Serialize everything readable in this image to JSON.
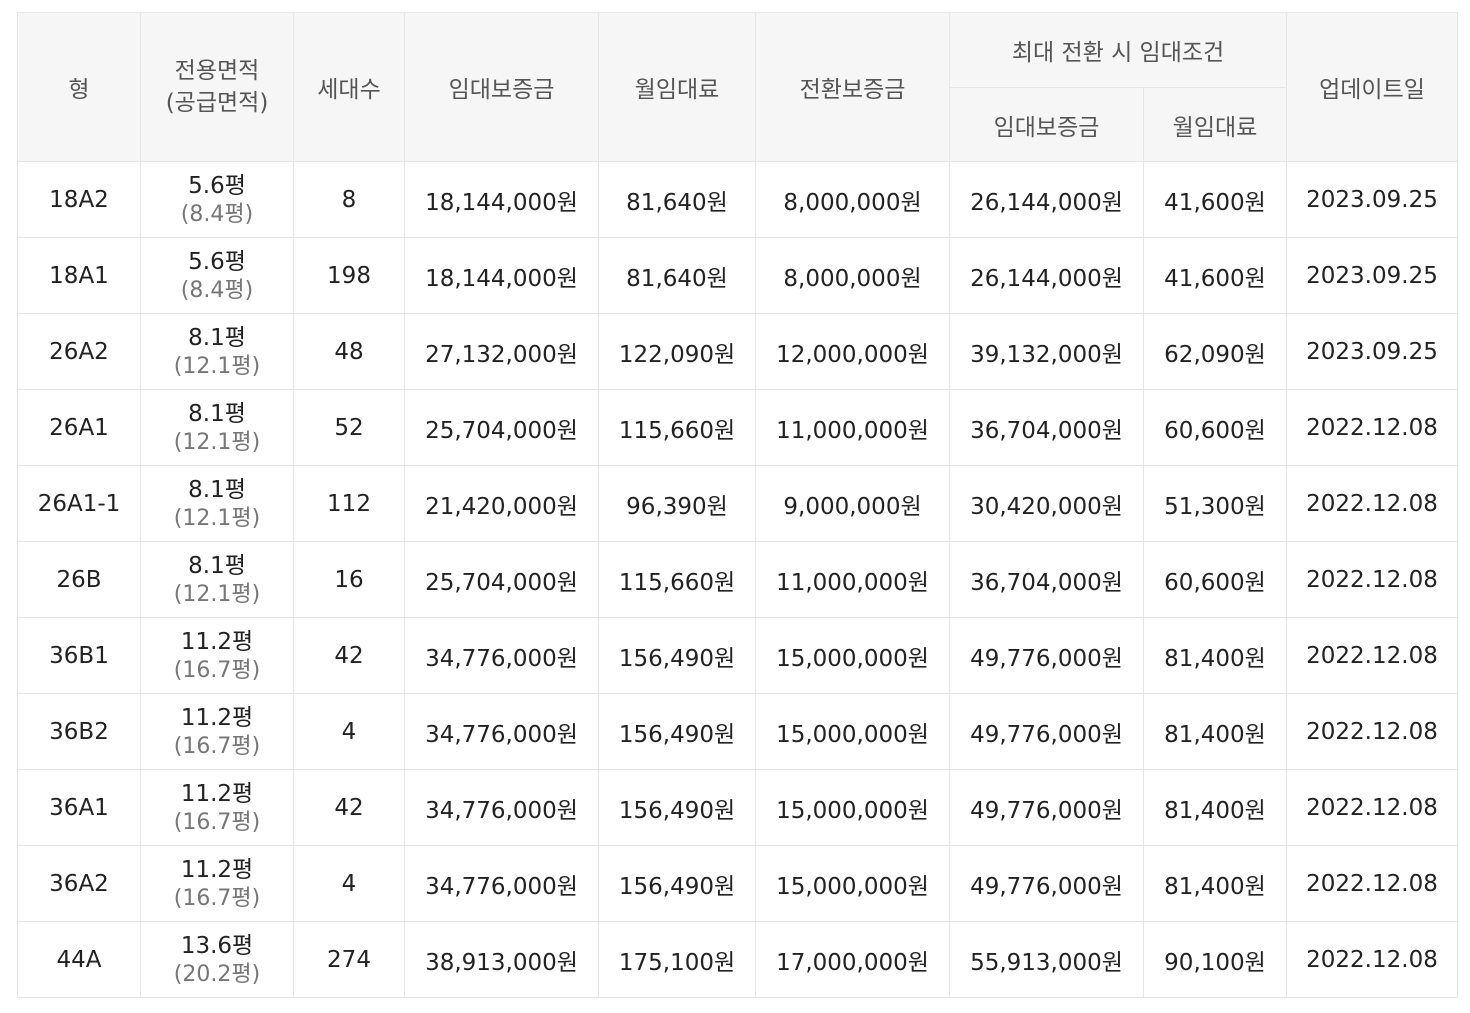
{
  "headers": {
    "type": "형",
    "area_line1": "전용면적",
    "area_line2": "(공급면적)",
    "households": "세대수",
    "deposit": "임대보증금",
    "monthly_rent": "월임대료",
    "conversion_deposit": "전환보증금",
    "max_conversion_group": "최대 전환 시 임대조건",
    "max_deposit": "임대보증금",
    "max_monthly_rent": "월임대료",
    "updated": "업데이트일"
  },
  "rows": [
    {
      "type": "18A2",
      "area": "5.6평",
      "supply_area": "(8.4평)",
      "households": "8",
      "deposit": "18,144,000원",
      "monthly_rent": "81,640원",
      "conversion_deposit": "8,000,000원",
      "max_deposit": "26,144,000원",
      "max_monthly_rent": "41,600원",
      "updated": "2023.09.25"
    },
    {
      "type": "18A1",
      "area": "5.6평",
      "supply_area": "(8.4평)",
      "households": "198",
      "deposit": "18,144,000원",
      "monthly_rent": "81,640원",
      "conversion_deposit": "8,000,000원",
      "max_deposit": "26,144,000원",
      "max_monthly_rent": "41,600원",
      "updated": "2023.09.25"
    },
    {
      "type": "26A2",
      "area": "8.1평",
      "supply_area": "(12.1평)",
      "households": "48",
      "deposit": "27,132,000원",
      "monthly_rent": "122,090원",
      "conversion_deposit": "12,000,000원",
      "max_deposit": "39,132,000원",
      "max_monthly_rent": "62,090원",
      "updated": "2023.09.25"
    },
    {
      "type": "26A1",
      "area": "8.1평",
      "supply_area": "(12.1평)",
      "households": "52",
      "deposit": "25,704,000원",
      "monthly_rent": "115,660원",
      "conversion_deposit": "11,000,000원",
      "max_deposit": "36,704,000원",
      "max_monthly_rent": "60,600원",
      "updated": "2022.12.08"
    },
    {
      "type": "26A1-1",
      "area": "8.1평",
      "supply_area": "(12.1평)",
      "households": "112",
      "deposit": "21,420,000원",
      "monthly_rent": "96,390원",
      "conversion_deposit": "9,000,000원",
      "max_deposit": "30,420,000원",
      "max_monthly_rent": "51,300원",
      "updated": "2022.12.08"
    },
    {
      "type": "26B",
      "area": "8.1평",
      "supply_area": "(12.1평)",
      "households": "16",
      "deposit": "25,704,000원",
      "monthly_rent": "115,660원",
      "conversion_deposit": "11,000,000원",
      "max_deposit": "36,704,000원",
      "max_monthly_rent": "60,600원",
      "updated": "2022.12.08"
    },
    {
      "type": "36B1",
      "area": "11.2평",
      "supply_area": "(16.7평)",
      "households": "42",
      "deposit": "34,776,000원",
      "monthly_rent": "156,490원",
      "conversion_deposit": "15,000,000원",
      "max_deposit": "49,776,000원",
      "max_monthly_rent": "81,400원",
      "updated": "2022.12.08"
    },
    {
      "type": "36B2",
      "area": "11.2평",
      "supply_area": "(16.7평)",
      "households": "4",
      "deposit": "34,776,000원",
      "monthly_rent": "156,490원",
      "conversion_deposit": "15,000,000원",
      "max_deposit": "49,776,000원",
      "max_monthly_rent": "81,400원",
      "updated": "2022.12.08"
    },
    {
      "type": "36A1",
      "area": "11.2평",
      "supply_area": "(16.7평)",
      "households": "42",
      "deposit": "34,776,000원",
      "monthly_rent": "156,490원",
      "conversion_deposit": "15,000,000원",
      "max_deposit": "49,776,000원",
      "max_monthly_rent": "81,400원",
      "updated": "2022.12.08"
    },
    {
      "type": "36A2",
      "area": "11.2평",
      "supply_area": "(16.7평)",
      "households": "4",
      "deposit": "34,776,000원",
      "monthly_rent": "156,490원",
      "conversion_deposit": "15,000,000원",
      "max_deposit": "49,776,000원",
      "max_monthly_rent": "81,400원",
      "updated": "2022.12.08"
    },
    {
      "type": "44A",
      "area": "13.6평",
      "supply_area": "(20.2평)",
      "households": "274",
      "deposit": "38,913,000원",
      "monthly_rent": "175,100원",
      "conversion_deposit": "17,000,000원",
      "max_deposit": "55,913,000원",
      "max_monthly_rent": "90,100원",
      "updated": "2022.12.08"
    }
  ]
}
